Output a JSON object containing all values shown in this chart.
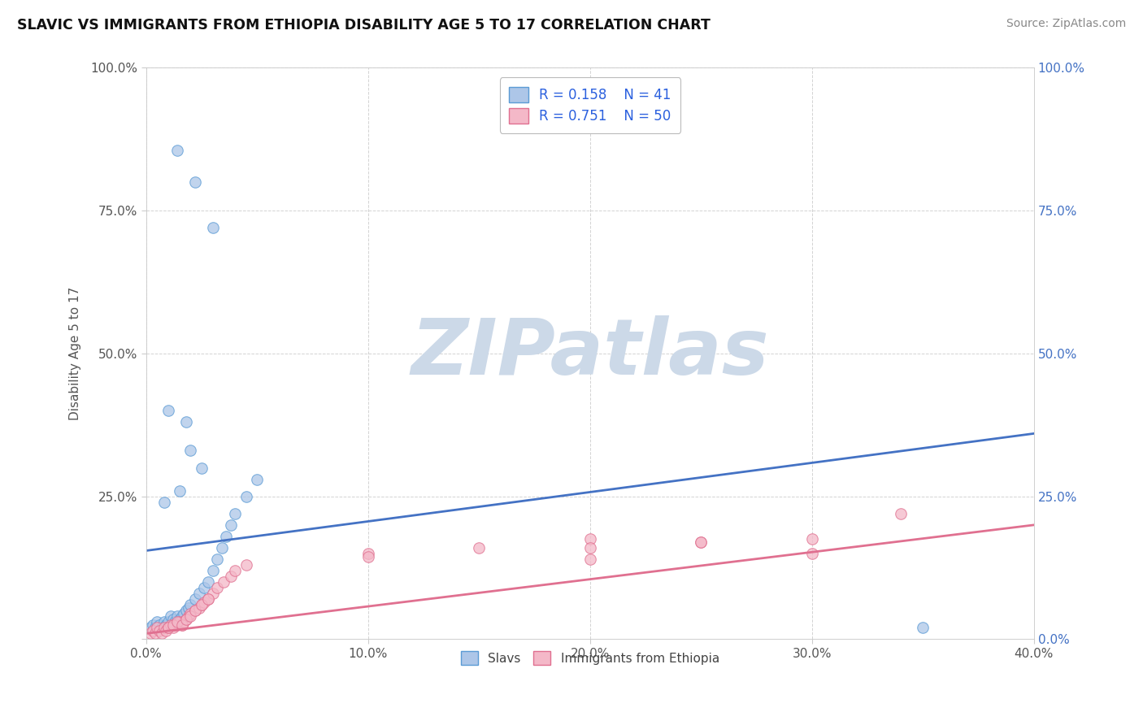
{
  "title": "SLAVIC VS IMMIGRANTS FROM ETHIOPIA DISABILITY AGE 5 TO 17 CORRELATION CHART",
  "source": "Source: ZipAtlas.com",
  "xlabel": "",
  "ylabel": "Disability Age 5 to 17",
  "xlim": [
    0.0,
    0.4
  ],
  "ylim": [
    0.0,
    1.0
  ],
  "xticks": [
    0.0,
    0.1,
    0.2,
    0.3,
    0.4
  ],
  "xtick_labels": [
    "0.0%",
    "10.0%",
    "20.0%",
    "30.0%",
    "40.0%"
  ],
  "yticks": [
    0.0,
    0.25,
    0.5,
    0.75,
    1.0
  ],
  "ytick_labels_left": [
    "",
    "25.0%",
    "50.0%",
    "75.0%",
    "100.0%"
  ],
  "ytick_labels_right": [
    "0.0%",
    "25.0%",
    "50.0%",
    "75.0%",
    "100.0%"
  ],
  "slavs_color": "#adc6e8",
  "slavs_edge_color": "#5b9bd5",
  "ethiopia_color": "#f4b8c8",
  "ethiopia_edge_color": "#e07090",
  "slavs_line_color": "#4472c4",
  "ethiopia_line_color": "#e07090",
  "R_slavs": 0.158,
  "N_slavs": 41,
  "R_ethiopia": 0.751,
  "N_ethiopia": 50,
  "legend_text_color": "#2b60de",
  "watermark": "ZIPatlas",
  "watermark_color": "#ccd9e8",
  "background_color": "#ffffff",
  "grid_color": "#c0c0c0",
  "slavs_line_start_y": 0.155,
  "slavs_line_end_y": 0.36,
  "ethiopia_line_start_y": 0.01,
  "ethiopia_line_end_y": 0.2,
  "slavs_x": [
    0.002,
    0.003,
    0.004,
    0.005,
    0.006,
    0.007,
    0.008,
    0.009,
    0.01,
    0.011,
    0.012,
    0.013,
    0.014,
    0.015,
    0.016,
    0.017,
    0.018,
    0.019,
    0.02,
    0.022,
    0.024,
    0.026,
    0.028,
    0.03,
    0.032,
    0.034,
    0.036,
    0.038,
    0.04,
    0.045,
    0.05,
    0.014,
    0.022,
    0.03,
    0.35,
    0.018,
    0.02,
    0.025,
    0.01,
    0.015,
    0.008
  ],
  "slavs_y": [
    0.02,
    0.025,
    0.02,
    0.03,
    0.025,
    0.02,
    0.03,
    0.025,
    0.03,
    0.04,
    0.035,
    0.03,
    0.04,
    0.035,
    0.04,
    0.045,
    0.05,
    0.055,
    0.06,
    0.07,
    0.08,
    0.09,
    0.1,
    0.12,
    0.14,
    0.16,
    0.18,
    0.2,
    0.22,
    0.25,
    0.28,
    0.855,
    0.8,
    0.72,
    0.02,
    0.38,
    0.33,
    0.3,
    0.4,
    0.26,
    0.24
  ],
  "ethiopia_x": [
    0.002,
    0.003,
    0.004,
    0.005,
    0.006,
    0.007,
    0.008,
    0.009,
    0.01,
    0.011,
    0.012,
    0.013,
    0.014,
    0.015,
    0.016,
    0.017,
    0.018,
    0.019,
    0.02,
    0.022,
    0.024,
    0.025,
    0.026,
    0.028,
    0.03,
    0.032,
    0.035,
    0.038,
    0.04,
    0.045,
    0.1,
    0.15,
    0.2,
    0.25,
    0.3,
    0.34,
    0.01,
    0.012,
    0.014,
    0.016,
    0.018,
    0.02,
    0.022,
    0.025,
    0.028,
    0.1,
    0.2,
    0.25,
    0.3,
    0.2
  ],
  "ethiopia_y": [
    0.01,
    0.015,
    0.01,
    0.02,
    0.015,
    0.01,
    0.02,
    0.015,
    0.02,
    0.025,
    0.02,
    0.025,
    0.025,
    0.03,
    0.025,
    0.03,
    0.035,
    0.04,
    0.045,
    0.05,
    0.055,
    0.06,
    0.065,
    0.07,
    0.08,
    0.09,
    0.1,
    0.11,
    0.12,
    0.13,
    0.15,
    0.16,
    0.175,
    0.17,
    0.15,
    0.22,
    0.02,
    0.025,
    0.03,
    0.025,
    0.035,
    0.04,
    0.05,
    0.06,
    0.07,
    0.145,
    0.16,
    0.17,
    0.175,
    0.14
  ]
}
